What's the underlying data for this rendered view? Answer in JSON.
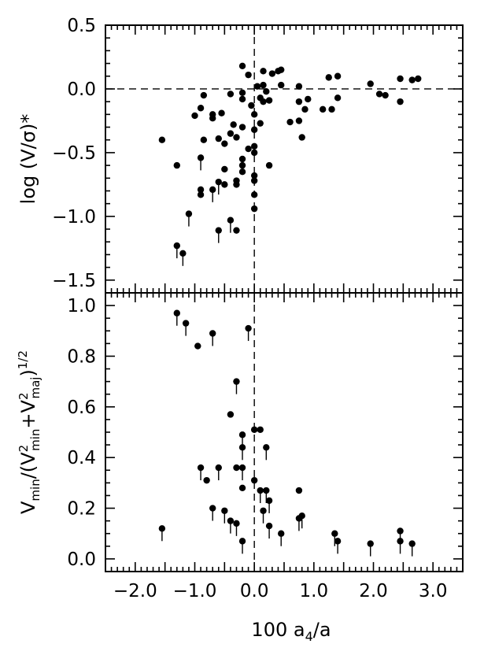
{
  "chart_data": [
    {
      "type": "scatter",
      "title": "",
      "xlabel": "100 a4/a",
      "ylabel": "log (V/σ)*",
      "xlim": [
        -2.5,
        3.5
      ],
      "ylim": [
        -1.6,
        0.5
      ],
      "xticks": [
        "-2.0",
        "-1.0",
        "0.0",
        "1.0",
        "2.0",
        "3.0"
      ],
      "yticks": [
        "0.5",
        "0.0",
        "-0.5",
        "-1.0",
        "-1.5"
      ],
      "reference_lines": {
        "horizontal_y": 0.0,
        "vertical_x": 0.0,
        "style": "dashed"
      },
      "grid": false,
      "points": [
        {
          "x": -1.55,
          "y": -0.4
        },
        {
          "x": -1.3,
          "y": -0.6
        },
        {
          "x": -1.3,
          "y": -1.23,
          "upper_limit": true
        },
        {
          "x": -1.2,
          "y": -1.29,
          "upper_limit": true
        },
        {
          "x": -1.1,
          "y": -0.98,
          "upper_limit": true
        },
        {
          "x": -1.0,
          "y": -0.21
        },
        {
          "x": -0.9,
          "y": -0.15
        },
        {
          "x": -0.9,
          "y": -0.54,
          "upper_limit": true
        },
        {
          "x": -0.9,
          "y": -0.79
        },
        {
          "x": -0.9,
          "y": -0.83
        },
        {
          "x": -0.85,
          "y": -0.05
        },
        {
          "x": -0.85,
          "y": -0.4
        },
        {
          "x": -0.7,
          "y": -0.2
        },
        {
          "x": -0.7,
          "y": -0.23
        },
        {
          "x": -0.7,
          "y": -0.79,
          "upper_limit": true
        },
        {
          "x": -0.6,
          "y": -0.39
        },
        {
          "x": -0.6,
          "y": -0.73,
          "upper_limit": true
        },
        {
          "x": -0.6,
          "y": -1.11,
          "upper_limit": true
        },
        {
          "x": -0.55,
          "y": -0.19
        },
        {
          "x": -0.5,
          "y": -0.43
        },
        {
          "x": -0.5,
          "y": -0.63
        },
        {
          "x": -0.5,
          "y": -0.75
        },
        {
          "x": -0.4,
          "y": -0.04
        },
        {
          "x": -0.4,
          "y": -0.35
        },
        {
          "x": -0.4,
          "y": -1.03,
          "upper_limit": true
        },
        {
          "x": -0.35,
          "y": -0.28
        },
        {
          "x": -0.3,
          "y": -0.38
        },
        {
          "x": -0.3,
          "y": -0.72
        },
        {
          "x": -0.3,
          "y": -0.75
        },
        {
          "x": -0.3,
          "y": -1.11
        },
        {
          "x": -0.2,
          "y": -0.03
        },
        {
          "x": -0.2,
          "y": -0.08
        },
        {
          "x": -0.2,
          "y": -0.3
        },
        {
          "x": -0.2,
          "y": -0.55
        },
        {
          "x": -0.2,
          "y": -0.6
        },
        {
          "x": -0.2,
          "y": -0.65
        },
        {
          "x": -0.2,
          "y": 0.18
        },
        {
          "x": -0.1,
          "y": 0.11
        },
        {
          "x": -0.1,
          "y": -0.47
        },
        {
          "x": -0.05,
          "y": -0.13
        },
        {
          "x": 0.0,
          "y": -0.2
        },
        {
          "x": 0.0,
          "y": -0.32
        },
        {
          "x": 0.0,
          "y": -0.45
        },
        {
          "x": 0.0,
          "y": -0.5
        },
        {
          "x": 0.0,
          "y": -0.68
        },
        {
          "x": 0.0,
          "y": -0.72
        },
        {
          "x": 0.0,
          "y": -0.83
        },
        {
          "x": 0.0,
          "y": -0.94
        },
        {
          "x": 0.05,
          "y": 0.02
        },
        {
          "x": 0.1,
          "y": -0.07
        },
        {
          "x": 0.1,
          "y": -0.27
        },
        {
          "x": 0.15,
          "y": 0.03
        },
        {
          "x": 0.15,
          "y": 0.14
        },
        {
          "x": 0.15,
          "y": -0.1
        },
        {
          "x": 0.2,
          "y": -0.02
        },
        {
          "x": 0.25,
          "y": -0.09
        },
        {
          "x": 0.25,
          "y": -0.6
        },
        {
          "x": 0.3,
          "y": 0.12
        },
        {
          "x": 0.4,
          "y": 0.14
        },
        {
          "x": 0.45,
          "y": 0.15
        },
        {
          "x": 0.45,
          "y": 0.03
        },
        {
          "x": 0.6,
          "y": -0.26
        },
        {
          "x": 0.75,
          "y": 0.02
        },
        {
          "x": 0.75,
          "y": -0.1
        },
        {
          "x": 0.75,
          "y": -0.25
        },
        {
          "x": 0.8,
          "y": -0.38
        },
        {
          "x": 0.85,
          "y": -0.16
        },
        {
          "x": 0.9,
          "y": -0.08
        },
        {
          "x": 1.15,
          "y": -0.16
        },
        {
          "x": 1.25,
          "y": 0.09
        },
        {
          "x": 1.3,
          "y": -0.16
        },
        {
          "x": 1.4,
          "y": 0.1
        },
        {
          "x": 1.4,
          "y": -0.07
        },
        {
          "x": 1.95,
          "y": 0.04
        },
        {
          "x": 2.1,
          "y": -0.04
        },
        {
          "x": 2.2,
          "y": -0.05
        },
        {
          "x": 2.45,
          "y": 0.08
        },
        {
          "x": 2.45,
          "y": -0.1
        },
        {
          "x": 2.65,
          "y": 0.07
        },
        {
          "x": 2.75,
          "y": 0.08
        }
      ]
    },
    {
      "type": "scatter",
      "title": "",
      "xlabel": "100 a4/a",
      "ylabel": "Vmin/(V2min+V2maj)1/2",
      "xlim": [
        -2.5,
        3.5
      ],
      "ylim": [
        -0.05,
        1.05
      ],
      "xticks": [
        "-2.0",
        "-1.0",
        "0.0",
        "1.0",
        "2.0",
        "3.0"
      ],
      "yticks": [
        "1.0",
        "0.8",
        "0.6",
        "0.4",
        "0.2",
        "0.0"
      ],
      "reference_lines": {
        "vertical_x": 0.0,
        "style": "dashed"
      },
      "grid": false,
      "points": [
        {
          "x": -1.55,
          "y": 0.12,
          "upper_limit": true
        },
        {
          "x": -1.3,
          "y": 0.97,
          "upper_limit": true
        },
        {
          "x": -1.15,
          "y": 0.93,
          "upper_limit": true
        },
        {
          "x": -0.95,
          "y": 0.84
        },
        {
          "x": -0.9,
          "y": 0.36,
          "upper_limit": true
        },
        {
          "x": -0.8,
          "y": 0.31
        },
        {
          "x": -0.7,
          "y": 0.89,
          "upper_limit": true
        },
        {
          "x": -0.7,
          "y": 0.2,
          "upper_limit": true
        },
        {
          "x": -0.6,
          "y": 0.36,
          "upper_limit": true
        },
        {
          "x": -0.5,
          "y": 0.19,
          "upper_limit": true
        },
        {
          "x": -0.4,
          "y": 0.57
        },
        {
          "x": -0.4,
          "y": 0.15,
          "upper_limit": true
        },
        {
          "x": -0.3,
          "y": 0.7,
          "upper_limit": true
        },
        {
          "x": -0.3,
          "y": 0.36
        },
        {
          "x": -0.3,
          "y": 0.14,
          "upper_limit": true
        },
        {
          "x": -0.2,
          "y": 0.49,
          "upper_limit": true
        },
        {
          "x": -0.2,
          "y": 0.44,
          "upper_limit": true
        },
        {
          "x": -0.2,
          "y": 0.36,
          "upper_limit": true
        },
        {
          "x": -0.2,
          "y": 0.28
        },
        {
          "x": -0.2,
          "y": 0.07,
          "upper_limit": true
        },
        {
          "x": -0.1,
          "y": 0.91,
          "upper_limit": true
        },
        {
          "x": 0.0,
          "y": 0.51
        },
        {
          "x": 0.0,
          "y": 0.31
        },
        {
          "x": 0.1,
          "y": 0.51
        },
        {
          "x": 0.1,
          "y": 0.27,
          "upper_limit": true
        },
        {
          "x": 0.15,
          "y": 0.19,
          "upper_limit": true
        },
        {
          "x": 0.2,
          "y": 0.44,
          "upper_limit": true
        },
        {
          "x": 0.2,
          "y": 0.27,
          "upper_limit": true
        },
        {
          "x": 0.25,
          "y": 0.23,
          "upper_limit": true
        },
        {
          "x": 0.25,
          "y": 0.13,
          "upper_limit": true
        },
        {
          "x": 0.45,
          "y": 0.1,
          "upper_limit": true
        },
        {
          "x": 0.75,
          "y": 0.27
        },
        {
          "x": 0.75,
          "y": 0.16,
          "upper_limit": true
        },
        {
          "x": 0.8,
          "y": 0.17,
          "upper_limit": true
        },
        {
          "x": 1.35,
          "y": 0.1,
          "upper_limit": true
        },
        {
          "x": 1.4,
          "y": 0.07,
          "upper_limit": true
        },
        {
          "x": 1.95,
          "y": 0.06,
          "upper_limit": true
        },
        {
          "x": 2.45,
          "y": 0.11,
          "upper_limit": true
        },
        {
          "x": 2.45,
          "y": 0.07,
          "upper_limit": true
        },
        {
          "x": 2.65,
          "y": 0.06,
          "upper_limit": true
        }
      ]
    }
  ]
}
